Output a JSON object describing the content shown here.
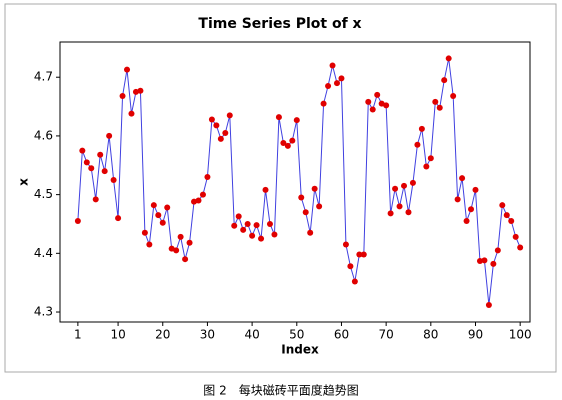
{
  "chart_data": {
    "type": "line",
    "title": "Time Series Plot of x",
    "xlabel": "Index",
    "ylabel": "x",
    "x": [
      1,
      2,
      3,
      4,
      5,
      6,
      7,
      8,
      9,
      10,
      11,
      12,
      13,
      14,
      15,
      16,
      17,
      18,
      19,
      20,
      21,
      22,
      23,
      24,
      25,
      26,
      27,
      28,
      29,
      30,
      31,
      32,
      33,
      34,
      35,
      36,
      37,
      38,
      39,
      40,
      41,
      42,
      43,
      44,
      45,
      46,
      47,
      48,
      49,
      50,
      51,
      52,
      53,
      54,
      55,
      56,
      57,
      58,
      59,
      60,
      61,
      62,
      63,
      64,
      65,
      66,
      67,
      68,
      69,
      70,
      71,
      72,
      73,
      74,
      75,
      76,
      77,
      78,
      79,
      80,
      81,
      82,
      83,
      84,
      85,
      86,
      87,
      88,
      89,
      90,
      91,
      92,
      93,
      94,
      95,
      96,
      97,
      98,
      99,
      100
    ],
    "values": [
      4.455,
      4.575,
      4.555,
      4.545,
      4.492,
      4.568,
      4.54,
      4.6,
      4.525,
      4.46,
      4.668,
      4.713,
      4.638,
      4.675,
      4.677,
      4.435,
      4.415,
      4.482,
      4.465,
      4.452,
      4.478,
      4.408,
      4.405,
      4.428,
      4.39,
      4.418,
      4.488,
      4.49,
      4.5,
      4.53,
      4.628,
      4.618,
      4.595,
      4.605,
      4.635,
      4.447,
      4.463,
      4.44,
      4.45,
      4.43,
      4.448,
      4.425,
      4.508,
      4.45,
      4.432,
      4.632,
      4.588,
      4.583,
      4.592,
      4.627,
      4.495,
      4.47,
      4.435,
      4.51,
      4.48,
      4.655,
      4.685,
      4.72,
      4.69,
      4.698,
      4.415,
      4.378,
      4.352,
      4.398,
      4.398,
      4.658,
      4.645,
      4.67,
      4.655,
      4.652,
      4.468,
      4.51,
      4.48,
      4.515,
      4.47,
      4.52,
      4.585,
      4.612,
      4.548,
      4.562,
      4.658,
      4.648,
      4.695,
      4.732,
      4.668,
      4.492,
      4.528,
      4.455,
      4.475,
      4.508,
      4.387,
      4.388,
      4.312,
      4.382,
      4.405,
      4.482,
      4.465,
      4.455,
      4.428,
      4.41
    ],
    "color": "#4040e0",
    "marker_color": "#e00000",
    "xlim": [
      -3,
      102.2
    ],
    "xticks": [
      1,
      10,
      20,
      30,
      40,
      50,
      60,
      70,
      80,
      90,
      100
    ],
    "ylim": [
      4.283,
      4.76
    ],
    "yticks": [
      4.3,
      4.4,
      4.5,
      4.6,
      4.7
    ]
  },
  "caption": "图 2　每块磁砖平面度趋势图"
}
